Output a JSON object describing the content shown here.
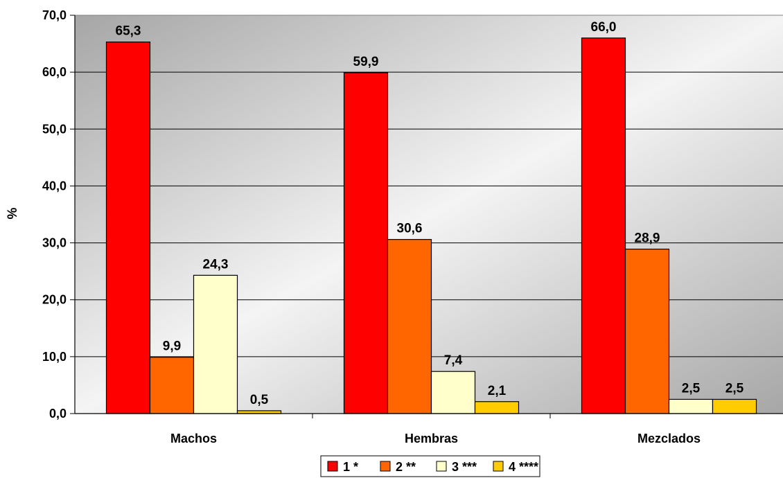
{
  "chart_data": {
    "type": "bar",
    "title": "",
    "xlabel": "",
    "ylabel": "%",
    "ylim": [
      0,
      70
    ],
    "ytick_step": 10,
    "ytick_labels": [
      "0,0",
      "10,0",
      "20,0",
      "30,0",
      "40,0",
      "50,0",
      "60,0",
      "70,0"
    ],
    "categories": [
      "Machos",
      "Hembras",
      "Mezclados"
    ],
    "grid": true,
    "legend_position": "bottom",
    "series": [
      {
        "name": "1 *",
        "color": "#ff0000",
        "values": [
          65.3,
          59.9,
          66.0
        ],
        "labels": [
          "65,3",
          "59,9",
          "66,0"
        ]
      },
      {
        "name": "2 **",
        "color": "#ff6600",
        "values": [
          9.9,
          30.6,
          28.9
        ],
        "labels": [
          "9,9",
          "30,6",
          "28,9"
        ]
      },
      {
        "name": "3 ***",
        "color": "#ffffcc",
        "values": [
          24.3,
          7.4,
          2.5
        ],
        "labels": [
          "24,3",
          "7,4",
          "2,5"
        ]
      },
      {
        "name": "4 ****",
        "color": "#ffcc00",
        "values": [
          0.5,
          2.1,
          2.5
        ],
        "labels": [
          "0,5",
          "2,1",
          "2,5"
        ]
      }
    ]
  }
}
